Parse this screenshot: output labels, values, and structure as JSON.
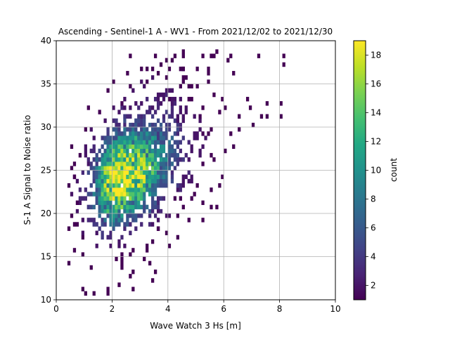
{
  "chart_data": {
    "type": "heatmap",
    "title": "Ascending - Sentinel-1 A - WV1 - From 2021/12/02 to 2021/12/30",
    "xlabel": "Wave Watch 3 Hs [m]",
    "ylabel": "S-1 A Signal to Noise ratio",
    "xlim": [
      0,
      10
    ],
    "ylim": [
      10,
      40
    ],
    "xticks": [
      "0",
      "2",
      "4",
      "6",
      "8",
      "10"
    ],
    "yticks": [
      "10",
      "15",
      "20",
      "25",
      "30",
      "35",
      "40"
    ],
    "grid": true,
    "bin_size": {
      "x": 0.1,
      "y": 0.5
    },
    "density_model": {
      "peak_location": {
        "x": 2.2,
        "y": 24.0
      },
      "peak_count": 19,
      "description_of_shape": "dense core around Hs 1.5-3 m, SNR 20-28; spread up to Hs ~8 m, SNR 12-38"
    },
    "outliers": [
      {
        "x": 8.2,
        "y": 38.2
      },
      {
        "x": 8.2,
        "y": 37.2
      },
      {
        "x": 7.2,
        "y": 38.2
      },
      {
        "x": 6.2,
        "y": 38.2
      },
      {
        "x": 5.3,
        "y": 38.2
      },
      {
        "x": 5.6,
        "y": 38.4
      },
      {
        "x": 8.1,
        "y": 32.8
      },
      {
        "x": 8.1,
        "y": 31.1
      },
      {
        "x": 7.6,
        "y": 32.6
      },
      {
        "x": 7.6,
        "y": 31.0
      },
      {
        "x": 7.0,
        "y": 30.2
      },
      {
        "x": 7.3,
        "y": 31.1
      },
      {
        "x": 6.9,
        "y": 32.4
      },
      {
        "x": 6.8,
        "y": 33.0
      },
      {
        "x": 6.6,
        "y": 31.0
      },
      {
        "x": 6.5,
        "y": 29.5
      },
      {
        "x": 6.2,
        "y": 29.2
      },
      {
        "x": 6.0,
        "y": 27.2
      },
      {
        "x": 5.9,
        "y": 24.4
      },
      {
        "x": 5.6,
        "y": 26.9
      },
      {
        "x": 5.5,
        "y": 20.7
      },
      {
        "x": 5.8,
        "y": 20.6
      },
      {
        "x": 5.2,
        "y": 21.0
      },
      {
        "x": 5.1,
        "y": 23.1
      },
      {
        "x": 4.9,
        "y": 22.0
      },
      {
        "x": 5.3,
        "y": 19.0
      },
      {
        "x": 4.6,
        "y": 20.5
      },
      {
        "x": 4.2,
        "y": 21.6
      },
      {
        "x": 4.4,
        "y": 21.9
      },
      {
        "x": 3.5,
        "y": 13.0
      },
      {
        "x": 3.4,
        "y": 12.2
      },
      {
        "x": 2.7,
        "y": 13.1
      },
      {
        "x": 2.6,
        "y": 12.6
      },
      {
        "x": 2.8,
        "y": 11.0
      },
      {
        "x": 2.2,
        "y": 11.5
      },
      {
        "x": 1.9,
        "y": 11.1
      },
      {
        "x": 1.8,
        "y": 10.7
      },
      {
        "x": 1.3,
        "y": 10.7
      },
      {
        "x": 1.0,
        "y": 10.8
      },
      {
        "x": 0.9,
        "y": 11.2
      },
      {
        "x": 0.4,
        "y": 14.4
      },
      {
        "x": 0.5,
        "y": 19.8
      },
      {
        "x": 0.7,
        "y": 18.7
      },
      {
        "x": 0.7,
        "y": 24.0
      },
      {
        "x": 0.6,
        "y": 25.3
      },
      {
        "x": 3.0,
        "y": 36.6
      },
      {
        "x": 3.3,
        "y": 36.6
      },
      {
        "x": 2.5,
        "y": 36.2
      },
      {
        "x": 4.1,
        "y": 36.6
      },
      {
        "x": 4.6,
        "y": 36.8
      },
      {
        "x": 5.4,
        "y": 36.8
      },
      {
        "x": 1.9,
        "y": 34.2
      },
      {
        "x": 1.2,
        "y": 32.2
      },
      {
        "x": 3.6,
        "y": 18.2
      },
      {
        "x": 4.0,
        "y": 16.3
      },
      {
        "x": 3.3,
        "y": 15.8
      },
      {
        "x": 2.7,
        "y": 15.9
      },
      {
        "x": 3.1,
        "y": 14.6
      },
      {
        "x": 2.4,
        "y": 14.0
      },
      {
        "x": 2.1,
        "y": 14.7
      }
    ],
    "colorbar": {
      "label": "count",
      "range": [
        1,
        19
      ],
      "ticks": [
        "2",
        "4",
        "6",
        "8",
        "10",
        "12",
        "14",
        "16",
        "18"
      ],
      "colormap": "viridis"
    }
  }
}
